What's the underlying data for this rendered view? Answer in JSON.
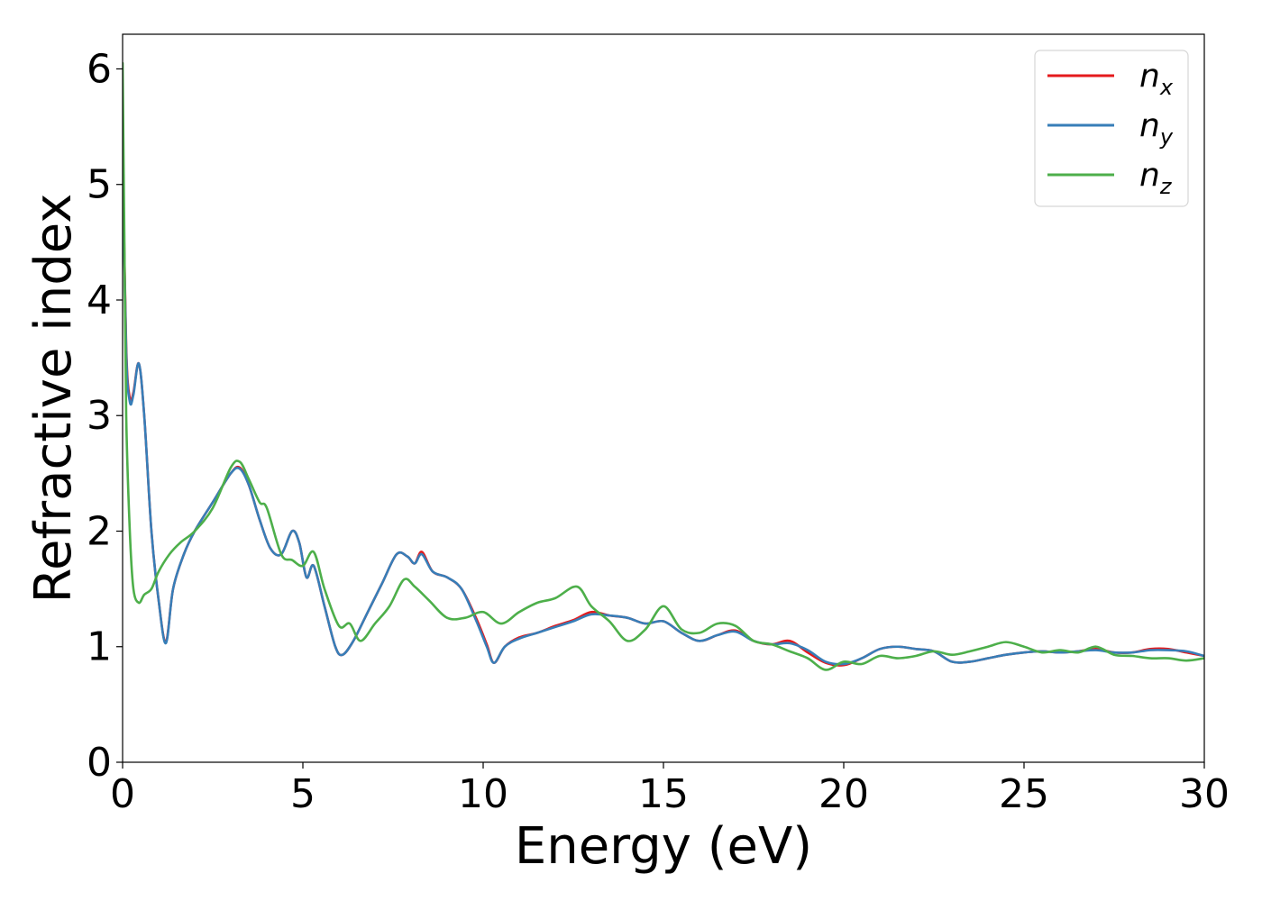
{
  "chart_data": {
    "type": "line",
    "xlabel": "Energy (eV)",
    "ylabel": "Refractive index",
    "xlim": [
      0,
      30
    ],
    "ylim": [
      0,
      6.3
    ],
    "xticks": [
      0,
      5,
      10,
      15,
      20,
      25,
      30
    ],
    "yticks": [
      0,
      1,
      2,
      3,
      4,
      5,
      6
    ],
    "grid": false,
    "legend_position": "top-right",
    "series": [
      {
        "name": "n",
        "sub": "x",
        "color": "#e41a1c",
        "x": [
          0.0,
          0.1,
          0.2,
          0.3,
          0.45,
          0.6,
          0.8,
          1.0,
          1.2,
          1.4,
          1.7,
          2.0,
          2.5,
          3.0,
          3.25,
          3.5,
          3.8,
          4.1,
          4.4,
          4.7,
          4.9,
          5.1,
          5.3,
          5.6,
          5.9,
          6.1,
          6.4,
          6.8,
          7.2,
          7.6,
          7.9,
          8.1,
          8.3,
          8.6,
          9.0,
          9.4,
          9.8,
          10.1,
          10.3,
          10.6,
          11.0,
          11.5,
          12.0,
          12.5,
          13.0,
          13.5,
          14.0,
          14.5,
          15.0,
          15.5,
          16.0,
          16.5,
          17.0,
          17.5,
          18.0,
          18.5,
          19.0,
          19.5,
          20.0,
          20.5,
          21.0,
          21.5,
          22.0,
          22.5,
          23.0,
          23.5,
          24.0,
          24.5,
          25.0,
          25.5,
          26.0,
          26.5,
          27.0,
          27.5,
          28.0,
          28.5,
          29.0,
          29.5,
          30.0
        ],
        "y": [
          5.3,
          3.6,
          3.15,
          3.2,
          3.45,
          3.0,
          2.0,
          1.4,
          1.04,
          1.5,
          1.8,
          2.0,
          2.25,
          2.5,
          2.55,
          2.4,
          2.1,
          1.85,
          1.8,
          2.0,
          1.9,
          1.6,
          1.7,
          1.35,
          1.0,
          0.93,
          1.05,
          1.3,
          1.55,
          1.8,
          1.78,
          1.72,
          1.82,
          1.65,
          1.6,
          1.5,
          1.25,
          1.02,
          0.86,
          1.0,
          1.08,
          1.12,
          1.18,
          1.23,
          1.3,
          1.27,
          1.25,
          1.2,
          1.22,
          1.12,
          1.05,
          1.1,
          1.14,
          1.05,
          1.02,
          1.05,
          0.95,
          0.86,
          0.84,
          0.9,
          0.98,
          1.0,
          0.98,
          0.96,
          0.87,
          0.87,
          0.9,
          0.93,
          0.95,
          0.96,
          0.95,
          0.96,
          0.98,
          0.95,
          0.95,
          0.98,
          0.98,
          0.95,
          0.92
        ]
      },
      {
        "name": "n",
        "sub": "y",
        "color": "#377eb8",
        "x": [
          0.0,
          0.1,
          0.2,
          0.3,
          0.45,
          0.6,
          0.8,
          1.0,
          1.2,
          1.4,
          1.7,
          2.0,
          2.5,
          3.0,
          3.25,
          3.5,
          3.8,
          4.1,
          4.4,
          4.7,
          4.9,
          5.1,
          5.3,
          5.6,
          5.9,
          6.1,
          6.4,
          6.8,
          7.2,
          7.6,
          7.9,
          8.1,
          8.3,
          8.6,
          9.0,
          9.4,
          9.8,
          10.1,
          10.3,
          10.6,
          11.0,
          11.5,
          12.0,
          12.5,
          13.0,
          13.5,
          14.0,
          14.5,
          15.0,
          15.5,
          16.0,
          16.5,
          17.0,
          17.5,
          18.0,
          18.5,
          19.0,
          19.5,
          20.0,
          20.5,
          21.0,
          21.5,
          22.0,
          22.5,
          23.0,
          23.5,
          24.0,
          24.5,
          25.0,
          25.5,
          26.0,
          26.5,
          27.0,
          27.5,
          28.0,
          28.5,
          29.0,
          29.5,
          30.0
        ],
        "y": [
          5.25,
          3.55,
          3.12,
          3.18,
          3.45,
          3.0,
          2.0,
          1.4,
          1.03,
          1.5,
          1.8,
          2.0,
          2.25,
          2.5,
          2.54,
          2.4,
          2.1,
          1.85,
          1.8,
          2.0,
          1.9,
          1.6,
          1.7,
          1.35,
          1.0,
          0.93,
          1.05,
          1.3,
          1.55,
          1.8,
          1.78,
          1.72,
          1.8,
          1.65,
          1.6,
          1.5,
          1.23,
          1.0,
          0.86,
          1.0,
          1.07,
          1.12,
          1.17,
          1.22,
          1.28,
          1.27,
          1.25,
          1.2,
          1.22,
          1.12,
          1.05,
          1.1,
          1.13,
          1.05,
          1.02,
          1.03,
          0.97,
          0.87,
          0.85,
          0.9,
          0.98,
          1.0,
          0.98,
          0.96,
          0.87,
          0.87,
          0.9,
          0.93,
          0.95,
          0.96,
          0.95,
          0.96,
          0.97,
          0.95,
          0.95,
          0.97,
          0.97,
          0.96,
          0.92
        ]
      },
      {
        "name": "n",
        "sub": "z",
        "color": "#4daf4a",
        "x": [
          0.0,
          0.05,
          0.1,
          0.2,
          0.3,
          0.45,
          0.6,
          0.8,
          1.0,
          1.3,
          1.6,
          2.0,
          2.5,
          3.0,
          3.25,
          3.5,
          3.8,
          4.0,
          4.4,
          4.7,
          5.0,
          5.3,
          5.6,
          6.0,
          6.3,
          6.6,
          7.0,
          7.4,
          7.8,
          8.1,
          8.5,
          9.0,
          9.5,
          10.0,
          10.5,
          11.0,
          11.5,
          12.0,
          12.6,
          13.0,
          13.5,
          14.0,
          14.5,
          15.0,
          15.5,
          16.0,
          16.5,
          17.0,
          17.5,
          18.0,
          18.5,
          19.0,
          19.5,
          20.0,
          20.5,
          21.0,
          21.5,
          22.0,
          22.5,
          23.0,
          23.5,
          24.0,
          24.5,
          25.0,
          25.5,
          26.0,
          26.5,
          27.0,
          27.5,
          28.0,
          28.5,
          29.0,
          29.5,
          30.0
        ],
        "y": [
          6.05,
          4.5,
          3.0,
          2.0,
          1.5,
          1.38,
          1.45,
          1.5,
          1.65,
          1.8,
          1.9,
          2.0,
          2.2,
          2.55,
          2.6,
          2.45,
          2.25,
          2.2,
          1.8,
          1.75,
          1.7,
          1.82,
          1.5,
          1.18,
          1.2,
          1.05,
          1.2,
          1.35,
          1.58,
          1.52,
          1.4,
          1.25,
          1.25,
          1.3,
          1.2,
          1.3,
          1.38,
          1.42,
          1.52,
          1.35,
          1.22,
          1.05,
          1.15,
          1.35,
          1.15,
          1.12,
          1.2,
          1.18,
          1.05,
          1.02,
          0.96,
          0.9,
          0.8,
          0.87,
          0.85,
          0.92,
          0.9,
          0.92,
          0.96,
          0.93,
          0.96,
          1.0,
          1.04,
          1.0,
          0.95,
          0.97,
          0.95,
          1.0,
          0.93,
          0.92,
          0.9,
          0.9,
          0.88,
          0.9
        ]
      }
    ]
  }
}
